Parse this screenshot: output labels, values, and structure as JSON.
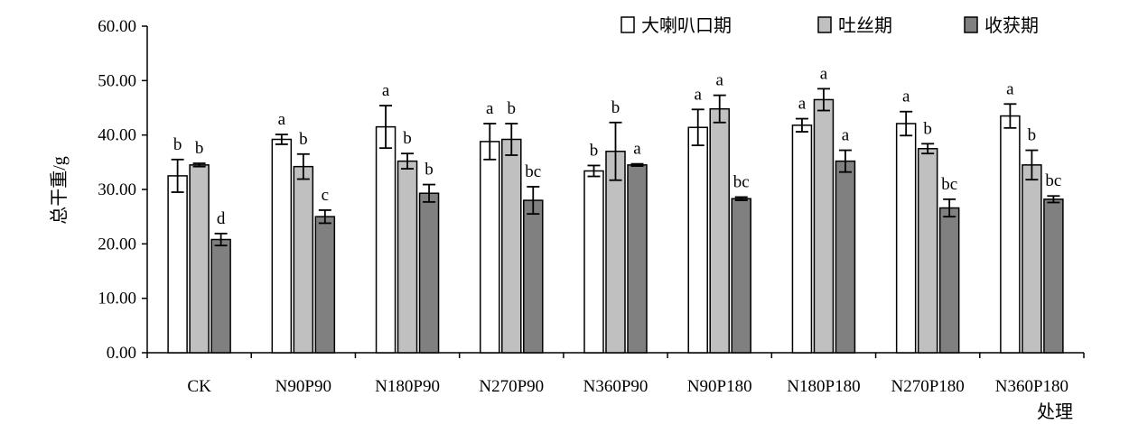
{
  "chart_data": {
    "type": "bar",
    "ylabel": "总干重/g",
    "xlabel": "处理",
    "ylim": [
      0,
      60
    ],
    "yticks": [
      "0.00",
      "10.00",
      "20.00",
      "30.00",
      "40.00",
      "50.00",
      "60.00"
    ],
    "grid": false,
    "legend_position": "top-right",
    "categories": [
      "CK",
      "N90P90",
      "N180P90",
      "N270P90",
      "N360P90",
      "N90P180",
      "N180P180",
      "N270P180",
      "N360P180"
    ],
    "series": [
      {
        "name": "大喇叭口期",
        "color": "#ffffff",
        "values": [
          32.5,
          39.2,
          41.5,
          38.8,
          33.4,
          41.4,
          41.8,
          42.1,
          43.5
        ],
        "errors": [
          3.0,
          0.9,
          3.9,
          3.3,
          1.0,
          3.3,
          1.2,
          2.2,
          2.2
        ],
        "labels": [
          "b",
          "a",
          "a",
          "a",
          "b",
          "a",
          "a",
          "a",
          "a"
        ]
      },
      {
        "name": "吐丝期",
        "color": "#c0c0c0",
        "values": [
          34.5,
          34.2,
          35.2,
          39.2,
          37.0,
          44.8,
          46.5,
          37.5,
          34.5
        ],
        "errors": [
          0.3,
          2.3,
          1.4,
          2.9,
          5.3,
          2.5,
          2.0,
          0.9,
          2.7
        ],
        "labels": [
          "b",
          "b",
          "b",
          "b",
          "b",
          "a",
          "a",
          "b",
          "b"
        ]
      },
      {
        "name": "收获期",
        "color": "#808080",
        "values": [
          20.8,
          25.0,
          29.3,
          28.0,
          34.5,
          28.3,
          35.2,
          26.6,
          28.2
        ],
        "errors": [
          1.1,
          1.2,
          1.6,
          2.5,
          0.2,
          0.3,
          2.0,
          1.6,
          0.6
        ],
        "labels": [
          "d",
          "c",
          "b",
          "bc",
          "a",
          "bc",
          "a",
          "bc",
          "bc"
        ]
      }
    ]
  }
}
